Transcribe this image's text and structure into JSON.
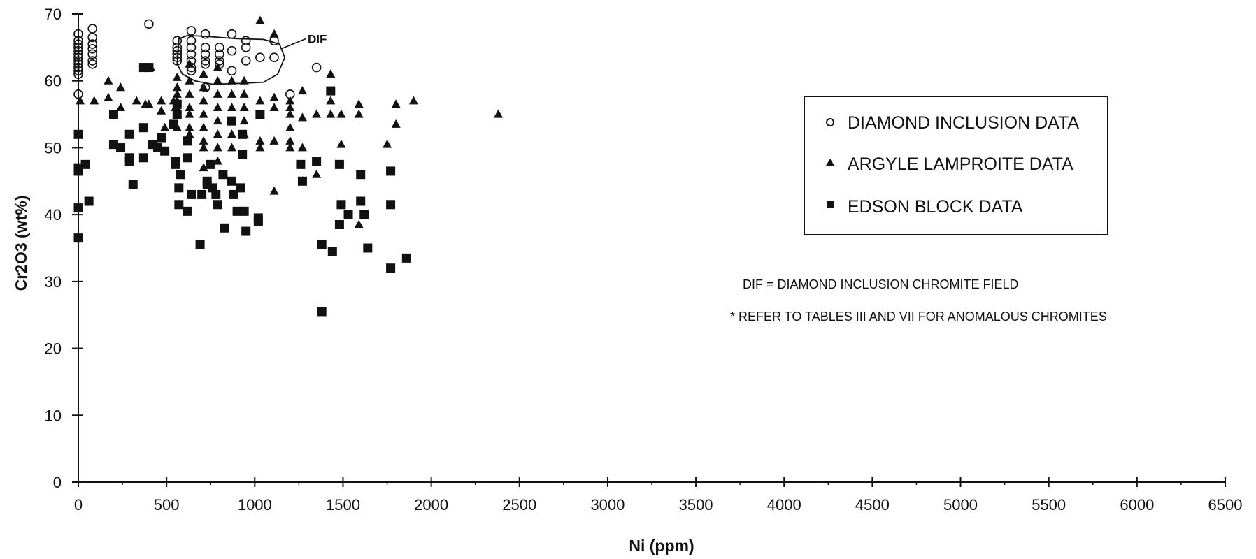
{
  "chart_data": {
    "type": "scatter",
    "title": "",
    "xlabel": "Ni (ppm)",
    "ylabel": "Cr2O3 (wt%)",
    "xlim": [
      0,
      6500
    ],
    "ylim": [
      0,
      70
    ],
    "x_ticks": [
      "0",
      "500",
      "1000",
      "1500",
      "2000",
      "2500",
      "3000",
      "3500",
      "4000",
      "4500",
      "5000",
      "5500",
      "6000",
      "6500"
    ],
    "y_ticks": [
      "0",
      "10",
      "20",
      "30",
      "40",
      "50",
      "60",
      "70"
    ],
    "grid": false,
    "legend_position": "right",
    "legend": [
      "DIAMOND INCLUSION DATA",
      "ARGYLE LAMPROITE DATA",
      "EDSON BLOCK DATA"
    ],
    "annotations": {
      "field_label": "DIF",
      "note_1": "DIF = DIAMOND INCLUSION CHROMITE FIELD",
      "note_2": "* REFER TO TABLES III AND VII FOR ANOMALOUS CHROMITES"
    },
    "series": [
      {
        "name": "DIAMOND INCLUSION DATA",
        "marker": "open-circle",
        "color": "#111111",
        "points": [
          [
            0,
            67
          ],
          [
            0,
            66
          ],
          [
            0,
            65.5
          ],
          [
            0,
            65
          ],
          [
            0,
            64.5
          ],
          [
            0,
            64
          ],
          [
            0,
            63.5
          ],
          [
            0,
            63
          ],
          [
            0,
            62.5
          ],
          [
            0,
            62
          ],
          [
            0,
            61.5
          ],
          [
            0,
            61
          ],
          [
            0,
            58
          ],
          [
            80,
            67.8
          ],
          [
            80,
            66.5
          ],
          [
            80,
            65.5
          ],
          [
            80,
            64.8
          ],
          [
            80,
            64
          ],
          [
            80,
            63
          ],
          [
            80,
            62.5
          ],
          [
            400,
            68.5
          ],
          [
            560,
            66
          ],
          [
            560,
            65
          ],
          [
            560,
            64.5
          ],
          [
            560,
            64
          ],
          [
            560,
            63.5
          ],
          [
            560,
            63
          ],
          [
            640,
            67.5
          ],
          [
            640,
            66
          ],
          [
            640,
            65
          ],
          [
            640,
            64
          ],
          [
            640,
            63
          ],
          [
            640,
            62
          ],
          [
            640,
            61.5
          ],
          [
            720,
            67
          ],
          [
            720,
            65
          ],
          [
            720,
            64
          ],
          [
            720,
            63
          ],
          [
            720,
            62.5
          ],
          [
            720,
            59
          ],
          [
            800,
            65
          ],
          [
            800,
            64
          ],
          [
            800,
            63
          ],
          [
            800,
            62.5
          ],
          [
            870,
            67
          ],
          [
            870,
            64.5
          ],
          [
            870,
            61.5
          ],
          [
            950,
            66
          ],
          [
            950,
            65
          ],
          [
            950,
            63
          ],
          [
            1030,
            63.5
          ],
          [
            1110,
            66
          ],
          [
            1110,
            63.5
          ],
          [
            1200,
            58
          ],
          [
            1350,
            62
          ]
        ]
      },
      {
        "name": "ARGYLE LAMPROITE DATA",
        "marker": "triangle",
        "color": "#111111",
        "points": [
          [
            10,
            57
          ],
          [
            90,
            57
          ],
          [
            170,
            60
          ],
          [
            170,
            57.5
          ],
          [
            240,
            59
          ],
          [
            240,
            56
          ],
          [
            330,
            57
          ],
          [
            380,
            56.5
          ],
          [
            400,
            56.5
          ],
          [
            410,
            62
          ],
          [
            470,
            55.5
          ],
          [
            470,
            57
          ],
          [
            490,
            53
          ],
          [
            540,
            57
          ],
          [
            550,
            56
          ],
          [
            560,
            60.5
          ],
          [
            560,
            59
          ],
          [
            560,
            58
          ],
          [
            560,
            57
          ],
          [
            560,
            56
          ],
          [
            560,
            55
          ],
          [
            560,
            53
          ],
          [
            630,
            62.5
          ],
          [
            630,
            60
          ],
          [
            630,
            58
          ],
          [
            630,
            56
          ],
          [
            630,
            55
          ],
          [
            630,
            53
          ],
          [
            630,
            52
          ],
          [
            710,
            61
          ],
          [
            710,
            59
          ],
          [
            710,
            57
          ],
          [
            710,
            55
          ],
          [
            710,
            53
          ],
          [
            710,
            51
          ],
          [
            710,
            50
          ],
          [
            710,
            47
          ],
          [
            790,
            62
          ],
          [
            790,
            60
          ],
          [
            790,
            58
          ],
          [
            790,
            56
          ],
          [
            790,
            54
          ],
          [
            790,
            52
          ],
          [
            790,
            50
          ],
          [
            790,
            48
          ],
          [
            870,
            60
          ],
          [
            870,
            58
          ],
          [
            870,
            56
          ],
          [
            870,
            54
          ],
          [
            870,
            52
          ],
          [
            870,
            50
          ],
          [
            940,
            60
          ],
          [
            940,
            58
          ],
          [
            940,
            56
          ],
          [
            940,
            54
          ],
          [
            940,
            52
          ],
          [
            1030,
            69
          ],
          [
            1030,
            57
          ],
          [
            1030,
            55
          ],
          [
            1030,
            51
          ],
          [
            1030,
            50
          ],
          [
            1110,
            67
          ],
          [
            1110,
            57.5
          ],
          [
            1110,
            56
          ],
          [
            1110,
            51
          ],
          [
            1110,
            43.5
          ],
          [
            1200,
            57
          ],
          [
            1200,
            56
          ],
          [
            1200,
            55
          ],
          [
            1200,
            53
          ],
          [
            1200,
            51
          ],
          [
            1200,
            50
          ],
          [
            1270,
            58.5
          ],
          [
            1270,
            54.5
          ],
          [
            1270,
            50
          ],
          [
            1270,
            45
          ],
          [
            1350,
            55
          ],
          [
            1350,
            46
          ],
          [
            1430,
            61
          ],
          [
            1430,
            57
          ],
          [
            1430,
            55
          ],
          [
            1490,
            55
          ],
          [
            1490,
            50.5
          ],
          [
            1590,
            56.5
          ],
          [
            1590,
            55
          ],
          [
            1590,
            38.5
          ],
          [
            1750,
            50.5
          ],
          [
            1800,
            56.5
          ],
          [
            1800,
            53.5
          ],
          [
            1900,
            57
          ],
          [
            2380,
            55
          ]
        ]
      },
      {
        "name": "EDSON BLOCK DATA",
        "marker": "filled-square",
        "color": "#111111",
        "points": [
          [
            0,
            52
          ],
          [
            0,
            47
          ],
          [
            0,
            46.5
          ],
          [
            0,
            41
          ],
          [
            0,
            36.5
          ],
          [
            40,
            47.5
          ],
          [
            60,
            42
          ],
          [
            200,
            55
          ],
          [
            200,
            50.5
          ],
          [
            240,
            50
          ],
          [
            290,
            52
          ],
          [
            290,
            48.5
          ],
          [
            290,
            48
          ],
          [
            310,
            44.5
          ],
          [
            370,
            62
          ],
          [
            370,
            53
          ],
          [
            370,
            48.5
          ],
          [
            400,
            62
          ],
          [
            420,
            50.5
          ],
          [
            450,
            50
          ],
          [
            470,
            51.5
          ],
          [
            490,
            49.5
          ],
          [
            540,
            53.5
          ],
          [
            550,
            48
          ],
          [
            550,
            47.5
          ],
          [
            560,
            56.5
          ],
          [
            560,
            55
          ],
          [
            570,
            44
          ],
          [
            570,
            41.5
          ],
          [
            580,
            46
          ],
          [
            620,
            51
          ],
          [
            620,
            48.5
          ],
          [
            620,
            40.5
          ],
          [
            640,
            43
          ],
          [
            690,
            35.5
          ],
          [
            700,
            43
          ],
          [
            730,
            45
          ],
          [
            730,
            44.5
          ],
          [
            750,
            47.5
          ],
          [
            760,
            44
          ],
          [
            780,
            43
          ],
          [
            790,
            41.5
          ],
          [
            820,
            46
          ],
          [
            830,
            38
          ],
          [
            870,
            54
          ],
          [
            870,
            45
          ],
          [
            880,
            43
          ],
          [
            900,
            40.5
          ],
          [
            920,
            44
          ],
          [
            930,
            49
          ],
          [
            930,
            52
          ],
          [
            940,
            40.5
          ],
          [
            950,
            37.5
          ],
          [
            1020,
            39.5
          ],
          [
            1020,
            39
          ],
          [
            1030,
            55
          ],
          [
            1260,
            47.5
          ],
          [
            1270,
            45
          ],
          [
            1350,
            48
          ],
          [
            1380,
            35.5
          ],
          [
            1380,
            25.5
          ],
          [
            1430,
            58.5
          ],
          [
            1440,
            34.5
          ],
          [
            1480,
            47.5
          ],
          [
            1480,
            38.5
          ],
          [
            1490,
            41.5
          ],
          [
            1530,
            40
          ],
          [
            1600,
            46
          ],
          [
            1600,
            42
          ],
          [
            1620,
            40
          ],
          [
            1640,
            35
          ],
          [
            1770,
            46.5
          ],
          [
            1770,
            41.5
          ],
          [
            1770,
            32
          ],
          [
            1860,
            33.5
          ]
        ]
      }
    ]
  }
}
